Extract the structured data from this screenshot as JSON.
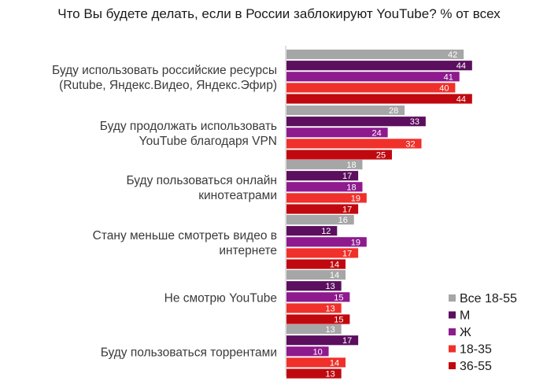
{
  "chart_data": {
    "type": "bar",
    "orientation": "horizontal",
    "title": "Что Вы будете делать, если в России заблокируют YouTube? % от всех",
    "categories": [
      [
        "Буду использовать российские ресурсы",
        "(Rutube, Яндекс.Видео, Яндекс.Эфир)"
      ],
      [
        "Буду продолжать использовать",
        "YouTube благодаря VPN"
      ],
      [
        "Буду пользоваться онлайн",
        "кинотеатрами"
      ],
      [
        "Стану меньше смотреть видео в",
        "интернете"
      ],
      [
        "Не смотрю YouTube"
      ],
      [
        "Буду пользоваться торрентами"
      ]
    ],
    "series": [
      {
        "name": "Все 18-55",
        "color": "#a6a6a6",
        "values": [
          42,
          28,
          18,
          16,
          14,
          13
        ]
      },
      {
        "name": "М",
        "color": "#5b0f5e",
        "values": [
          44,
          33,
          17,
          12,
          13,
          17
        ]
      },
      {
        "name": "Ж",
        "color": "#8e1a8e",
        "values": [
          41,
          24,
          18,
          19,
          15,
          10
        ]
      },
      {
        "name": "18-35",
        "color": "#f0302a",
        "values": [
          40,
          32,
          19,
          17,
          13,
          14
        ]
      },
      {
        "name": "36-55",
        "color": "#c0090f",
        "values": [
          44,
          25,
          17,
          14,
          15,
          13
        ]
      }
    ],
    "xlim": [
      0,
      44
    ],
    "grid": false,
    "legend_position": "bottom-right",
    "data_labels": true
  }
}
